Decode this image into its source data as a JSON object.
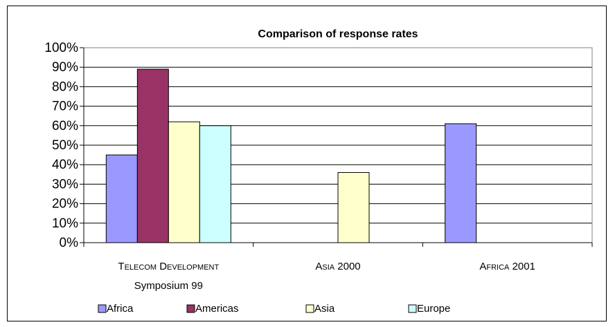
{
  "chart_data": {
    "type": "bar",
    "title": "Comparison of response rates",
    "xlabel": "",
    "ylabel": "",
    "ylim": [
      0,
      1
    ],
    "yticks": [
      "0%",
      "10%",
      "20%",
      "30%",
      "40%",
      "50%",
      "60%",
      "70%",
      "80%",
      "90%",
      "100%"
    ],
    "categories": [
      [
        "Telecom Development",
        "Symposium 99"
      ],
      [
        "Asia 2000"
      ],
      [
        "Africa 2001"
      ]
    ],
    "series": [
      {
        "name": "Africa",
        "color": "#9999ff",
        "values": [
          0.45,
          null,
          0.61
        ]
      },
      {
        "name": "Americas",
        "color": "#993366",
        "values": [
          0.89,
          null,
          null
        ]
      },
      {
        "name": "Asia",
        "color": "#ffffcc",
        "values": [
          0.62,
          0.36,
          null
        ]
      },
      {
        "name": "Europe",
        "color": "#ccffff",
        "values": [
          0.6,
          null,
          null
        ]
      }
    ],
    "grid": true,
    "legend_position": "bottom"
  }
}
